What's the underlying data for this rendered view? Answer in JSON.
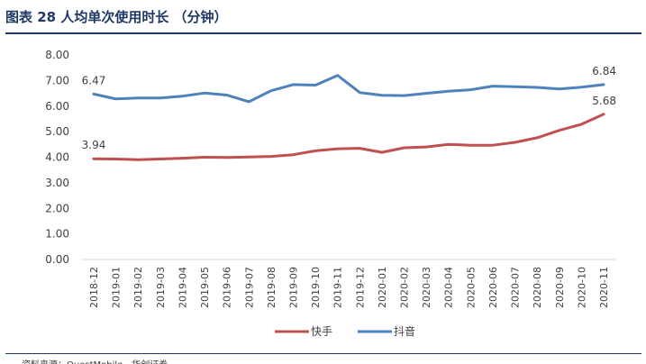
{
  "figure": {
    "title": "图表 28   人均单次使用时长 （分钟）",
    "source": "资料来源：QuestMobile，华创证券"
  },
  "chart_data": {
    "type": "line",
    "title": "",
    "xlabel": "",
    "ylabel": "",
    "ylim": [
      0,
      8
    ],
    "yticks": [
      "0.00",
      "1.00",
      "2.00",
      "3.00",
      "4.00",
      "5.00",
      "6.00",
      "7.00",
      "8.00"
    ],
    "grid": false,
    "legend_position": "bottom",
    "x": [
      "2018-12",
      "2019-01",
      "2019-02",
      "2019-03",
      "2019-04",
      "2019-05",
      "2019-06",
      "2019-07",
      "2019-08",
      "2019-09",
      "2019-10",
      "2019-11",
      "2019-12",
      "2020-01",
      "2020-02",
      "2020-03",
      "2020-04",
      "2020-05",
      "2020-06",
      "2020-07",
      "2020-08",
      "2020-09",
      "2020-10",
      "2020-11"
    ],
    "series": [
      {
        "name": "快手",
        "color": "#c0504d",
        "values": [
          3.94,
          3.93,
          3.9,
          3.93,
          3.96,
          4.0,
          3.99,
          4.01,
          4.03,
          4.1,
          4.25,
          4.33,
          4.35,
          4.19,
          4.37,
          4.4,
          4.5,
          4.47,
          4.47,
          4.58,
          4.76,
          5.05,
          5.29,
          5.68
        ],
        "labels": [
          {
            "index": 0,
            "text": "3.94"
          },
          {
            "index": 23,
            "text": "5.68"
          }
        ]
      },
      {
        "name": "抖音",
        "color": "#4f81bd",
        "values": [
          6.47,
          6.28,
          6.32,
          6.32,
          6.39,
          6.51,
          6.43,
          6.17,
          6.6,
          6.84,
          6.82,
          7.2,
          6.53,
          6.42,
          6.41,
          6.5,
          6.58,
          6.64,
          6.78,
          6.76,
          6.73,
          6.67,
          6.74,
          6.84
        ],
        "labels": [
          {
            "index": 0,
            "text": "6.47"
          },
          {
            "index": 23,
            "text": "6.84"
          }
        ]
      }
    ]
  }
}
